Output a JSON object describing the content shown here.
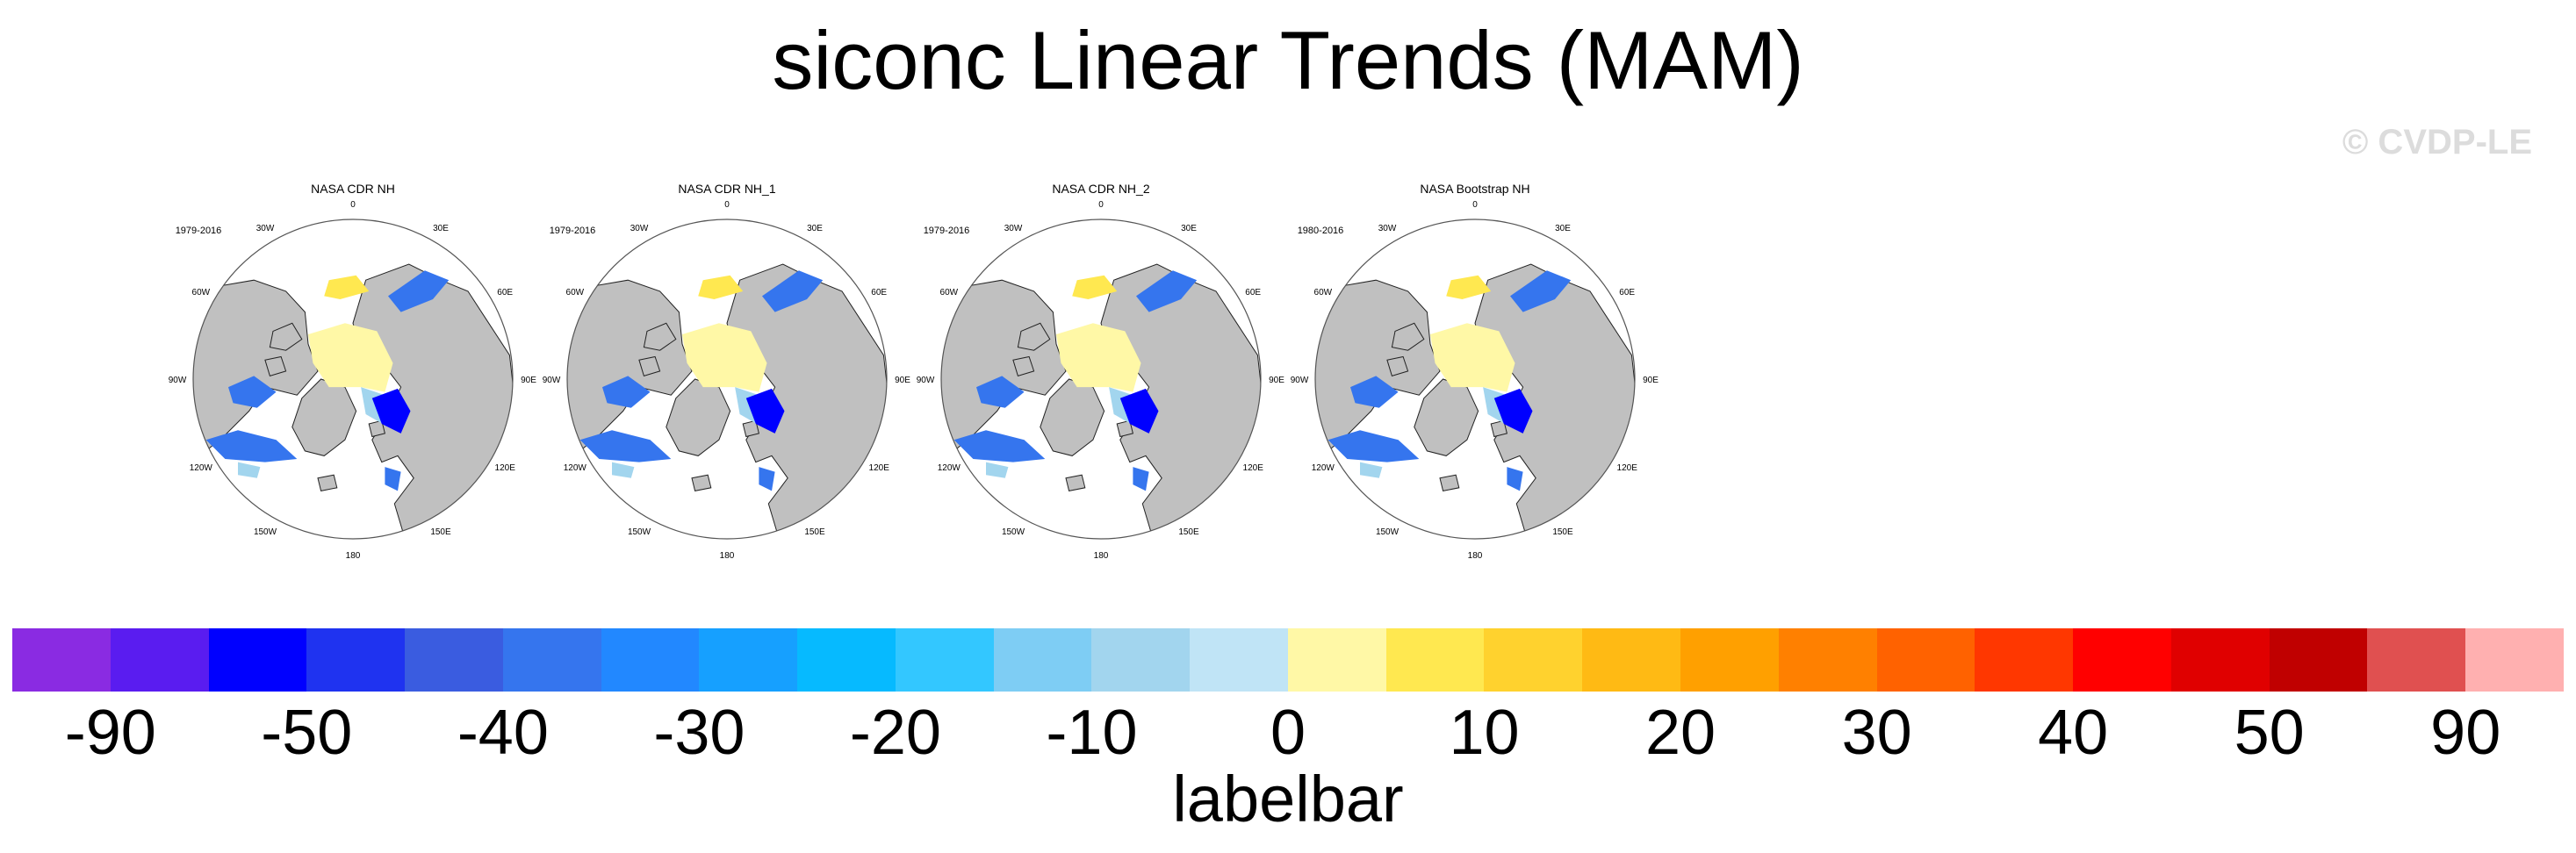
{
  "title": "siconc Linear Trends (MAM)",
  "watermark": "© CVDP-LE",
  "panels": [
    {
      "title": "NASA CDR NH",
      "period": "1979-2016"
    },
    {
      "title": "NASA CDR NH_1",
      "period": "1979-2016"
    },
    {
      "title": "NASA CDR NH_2",
      "period": "1979-2016"
    },
    {
      "title": "NASA Bootstrap NH",
      "period": "1980-2016"
    }
  ],
  "longitude_labels": [
    "180",
    "150E",
    "120E",
    "90E",
    "60E",
    "30E",
    "0",
    "30W",
    "60W",
    "90W",
    "120W",
    "150W"
  ],
  "labelbar": {
    "title": "labelbar",
    "colors": [
      "#8a2be2",
      "#5a1cf0",
      "#0000ff",
      "#1f33f0",
      "#3a5ce0",
      "#3575ee",
      "#2288ff",
      "#16a0ff",
      "#06baff",
      "#33c7ff",
      "#7ecdf4",
      "#a2d5ee",
      "#c0e4f6",
      "#fff8a6",
      "#ffe850",
      "#ffd22e",
      "#ffba14",
      "#ffa000",
      "#ff8000",
      "#ff6200",
      "#ff3700",
      "#ff0000",
      "#e00000",
      "#c00000",
      "#e05050",
      "#ffb0b0"
    ],
    "ticks": [
      "-90",
      "-50",
      "-40",
      "-30",
      "-20",
      "-10",
      "0",
      "10",
      "20",
      "30",
      "40",
      "50",
      "90"
    ]
  },
  "map_colors": {
    "land": "#c0c0c0",
    "ocean": "#ffffff",
    "coastline": "#222222",
    "ice_trend_weak_positive": "#fff8a6",
    "ice_trend_yellow": "#ffe850",
    "ice_trend_light_blue": "#a2d5ee",
    "ice_trend_blue": "#3575ee",
    "ice_trend_deep_blue": "#0000ff"
  }
}
